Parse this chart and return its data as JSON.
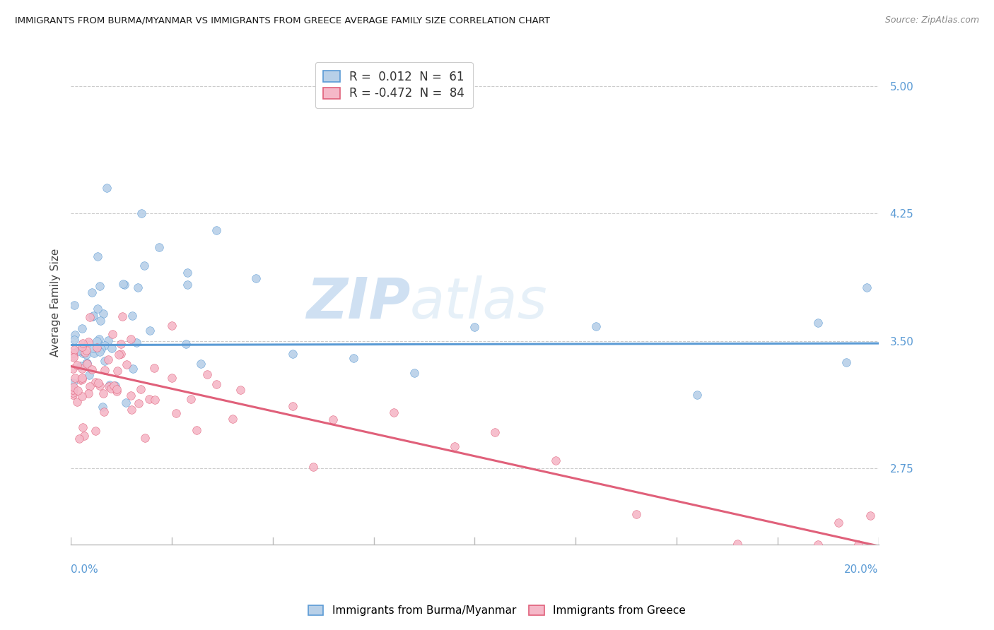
{
  "title": "IMMIGRANTS FROM BURMA/MYANMAR VS IMMIGRANTS FROM GREECE AVERAGE FAMILY SIZE CORRELATION CHART",
  "source": "Source: ZipAtlas.com",
  "ylabel": "Average Family Size",
  "yticks": [
    2.75,
    3.5,
    4.25,
    5.0
  ],
  "xlim": [
    0.0,
    20.0
  ],
  "ylim": [
    2.3,
    5.15
  ],
  "watermark": "ZIPatlas",
  "series": [
    {
      "label": "Immigrants from Burma/Myanmar",
      "R": 0.012,
      "N": 61,
      "color": "#b8d0e8",
      "line_color": "#5b9bd5",
      "edge_color": "#5b9bd5"
    },
    {
      "label": "Immigrants from Greece",
      "R": -0.472,
      "N": 84,
      "color": "#f5b8c8",
      "line_color": "#e0607a",
      "edge_color": "#e0607a"
    }
  ]
}
